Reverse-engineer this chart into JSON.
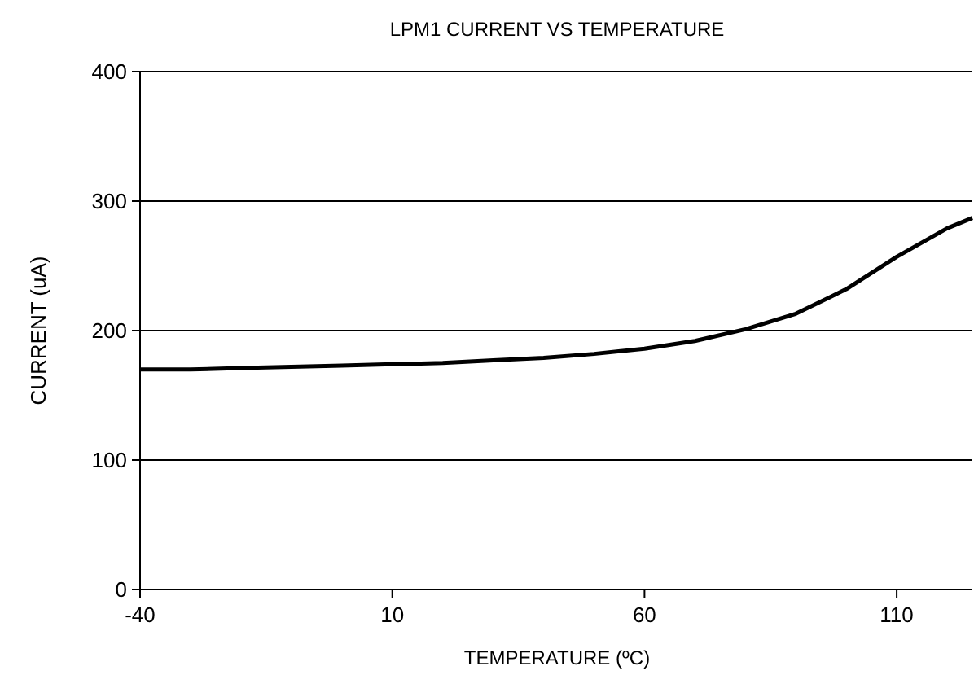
{
  "chart_data": {
    "type": "line",
    "title": "LPM1 CURRENT VS TEMPERATURE",
    "xlabel": "TEMPERATURE (ºC)",
    "ylabel": "CURRENT (uA)",
    "x": [
      -40,
      -30,
      -20,
      -10,
      0,
      10,
      20,
      30,
      40,
      50,
      60,
      70,
      80,
      90,
      100,
      110,
      120,
      125
    ],
    "series": [
      {
        "color": "#000000",
        "values": [
          170,
          170,
          171,
          172,
          173,
          174,
          175,
          177,
          179,
          182,
          186,
          192,
          201,
          213,
          232,
          257,
          279,
          287
        ]
      }
    ],
    "xlim": [
      -40,
      125
    ],
    "xticks": [
      -40,
      10,
      60,
      110
    ],
    "ylim": [
      0,
      400
    ],
    "yticks": [
      0,
      100,
      200,
      300,
      400
    ],
    "grid": "y",
    "marker": "none",
    "line_style": "solid"
  }
}
